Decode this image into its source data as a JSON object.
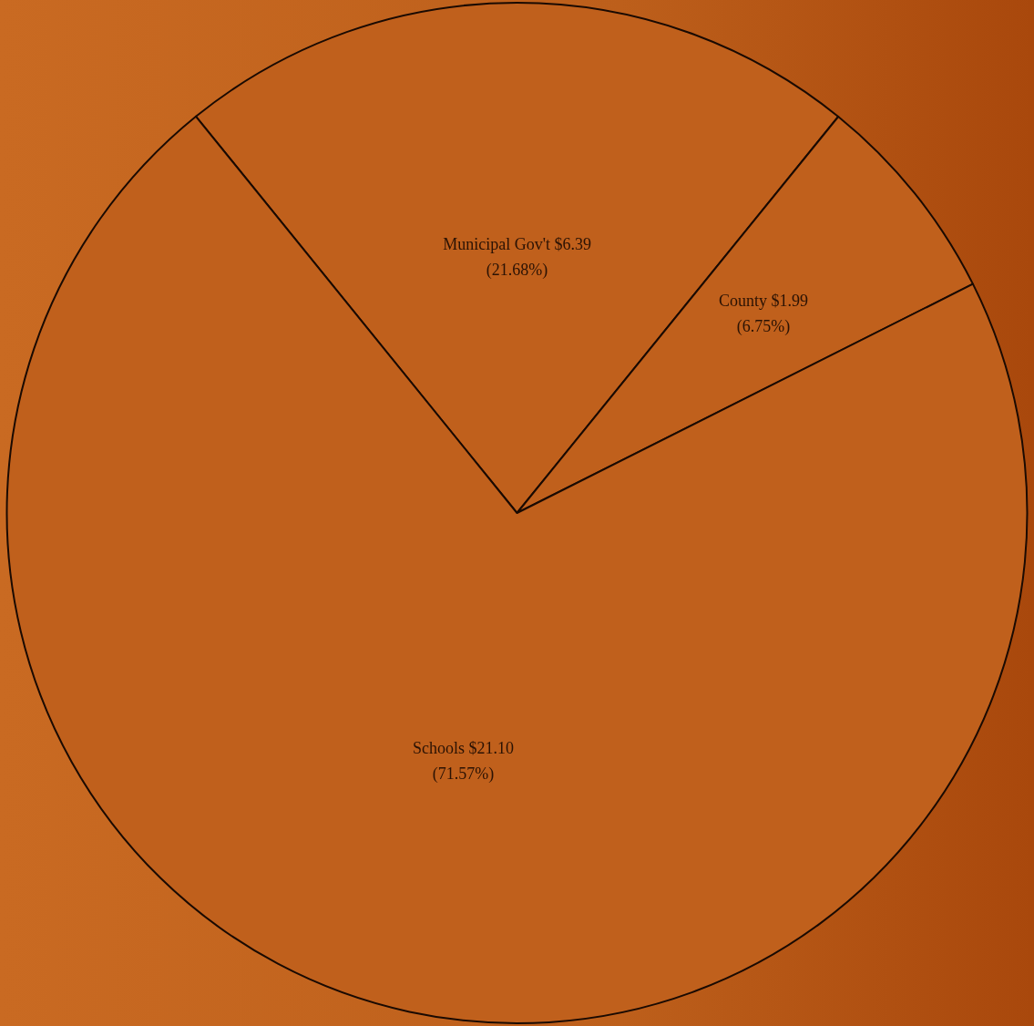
{
  "chart_data": {
    "type": "pie",
    "categories": [
      "Municipal Gov't",
      "County",
      "Schools"
    ],
    "values": [
      6.39,
      1.99,
      21.1
    ],
    "colors": [
      "#c0601c",
      "#c0601c",
      "#c0601c"
    ],
    "value_labels": [
      "$6.39\n(21.68%)",
      "$1.99\n(6.75%)",
      "$21.10\n(71.57%)"
    ]
  }
}
